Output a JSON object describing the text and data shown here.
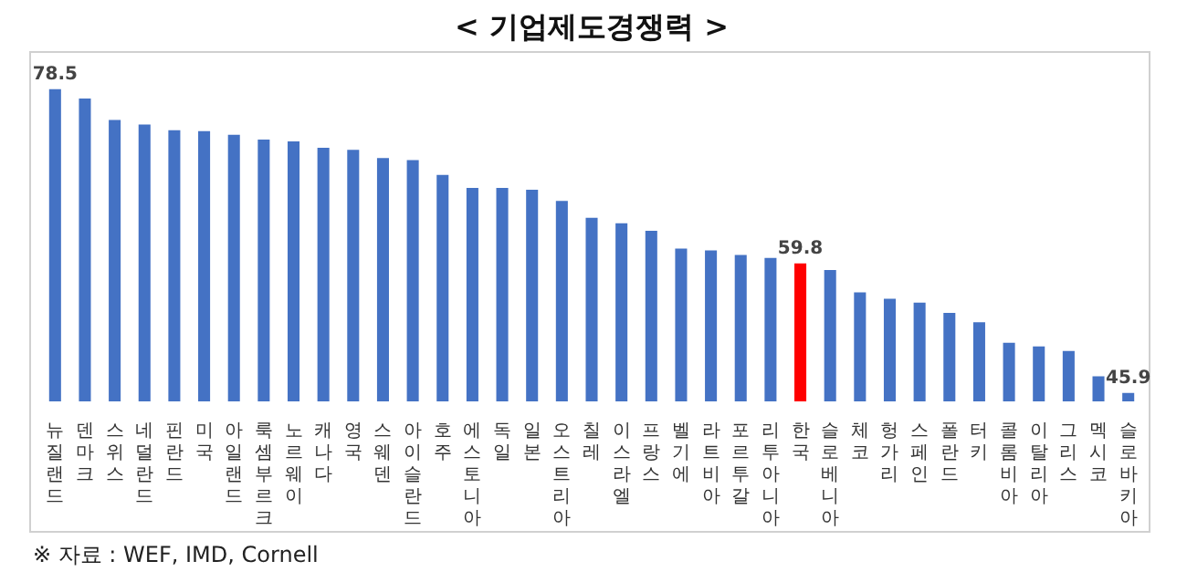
{
  "chart_data": {
    "type": "bar",
    "title": "< 기업제도경쟁력 >",
    "categories": [
      "뉴질랜드",
      "덴마크",
      "스위스",
      "네덜란드",
      "핀란드",
      "미국",
      "아일랜드",
      "룩셈부르크",
      "노르웨이",
      "캐나다",
      "영국",
      "스웨덴",
      "아이슬란드",
      "호주",
      "에스토니아",
      "독일",
      "일본",
      "오스트리아",
      "칠레",
      "이스라엘",
      "프랑스",
      "벨기에",
      "라트비아",
      "포르투갈",
      "리투아니아",
      "한국",
      "슬로베니아",
      "체코",
      "헝가리",
      "스페인",
      "폴란드",
      "터키",
      "콜롬비아",
      "이탈리아",
      "그리스",
      "멕시코",
      "슬로바키아"
    ],
    "values": [
      78.5,
      77.5,
      75.2,
      74.7,
      74.1,
      74.0,
      73.6,
      73.1,
      72.9,
      72.2,
      72.0,
      71.1,
      70.9,
      69.3,
      67.9,
      67.9,
      67.7,
      66.5,
      64.7,
      64.1,
      63.3,
      61.4,
      61.2,
      60.7,
      60.4,
      59.8,
      59.1,
      56.7,
      56.0,
      55.6,
      54.5,
      53.5,
      51.3,
      50.9,
      50.4,
      47.7,
      45.9
    ],
    "colors": [
      "#4472c4",
      "#4472c4",
      "#4472c4",
      "#4472c4",
      "#4472c4",
      "#4472c4",
      "#4472c4",
      "#4472c4",
      "#4472c4",
      "#4472c4",
      "#4472c4",
      "#4472c4",
      "#4472c4",
      "#4472c4",
      "#4472c4",
      "#4472c4",
      "#4472c4",
      "#4472c4",
      "#4472c4",
      "#4472c4",
      "#4472c4",
      "#4472c4",
      "#4472c4",
      "#4472c4",
      "#4472c4",
      "#ff0000",
      "#4472c4",
      "#4472c4",
      "#4472c4",
      "#4472c4",
      "#4472c4",
      "#4472c4",
      "#4472c4",
      "#4472c4",
      "#4472c4",
      "#4472c4",
      "#4472c4"
    ],
    "value_labels": [
      "78.5",
      null,
      null,
      null,
      null,
      null,
      null,
      null,
      null,
      null,
      null,
      null,
      null,
      null,
      null,
      null,
      null,
      null,
      null,
      null,
      null,
      null,
      null,
      null,
      null,
      "59.8",
      null,
      null,
      null,
      null,
      null,
      null,
      null,
      null,
      null,
      null,
      "45.9"
    ],
    "tick_labels": "x",
    "grid": false,
    "legend": false,
    "annotations": [
      "※ 자료 : WEF, IMD, Cornell"
    ]
  }
}
